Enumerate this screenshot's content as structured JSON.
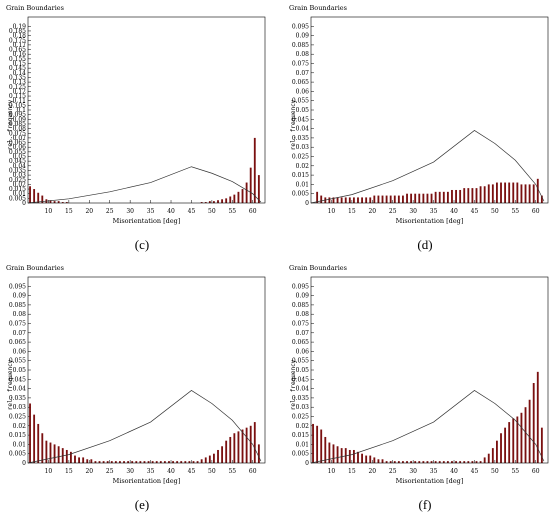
{
  "chart_data": [
    {
      "type": "bar",
      "label": "(c)",
      "title": "Grain Boundaries",
      "xlabel": "Misorientation [deg]",
      "ylabel": "rel. frequency",
      "xlim": [
        5,
        63
      ],
      "ylim": [
        0,
        0.2
      ],
      "xticks": [
        10,
        15,
        20,
        25,
        30,
        35,
        40,
        45,
        50,
        55,
        60
      ],
      "yticks": [
        "0.005",
        "0.01",
        "0.015",
        "0.02",
        "0.025",
        "0.03",
        "0.035",
        "0.04",
        "0.045",
        "0.05",
        "0.055",
        "0.06",
        "0.065",
        "0.07",
        "0.075",
        "0.08",
        "0.085",
        "0.09",
        "0.095",
        "0.1",
        "0.105",
        "0.11",
        "0.115",
        "0.12",
        "0.125",
        "0.13",
        "0.135",
        "0.14",
        "0.145",
        "0.15",
        "0.155",
        "0.16",
        "0.165",
        "0.17",
        "0.175",
        "0.18",
        "0.185",
        "0.19"
      ],
      "bar_color": "#7a1010",
      "x": [
        5,
        6,
        7,
        8,
        9,
        10,
        11,
        12,
        13,
        14,
        47,
        48,
        49,
        50,
        51,
        52,
        53,
        54,
        55,
        56,
        57,
        58,
        59,
        60,
        61
      ],
      "values": [
        0.018,
        0.015,
        0.011,
        0.008,
        0.004,
        0.003,
        0.002,
        0.002,
        0.001,
        0.001,
        0.001,
        0.001,
        0.002,
        0.002,
        0.003,
        0.004,
        0.005,
        0.007,
        0.009,
        0.012,
        0.015,
        0.022,
        0.038,
        0.07,
        0.03
      ],
      "reference_curve": {
        "x": [
          5,
          15,
          25,
          35,
          45,
          50,
          55,
          60,
          62
        ],
        "y": [
          0,
          0.0045,
          0.012,
          0.022,
          0.039,
          0.032,
          0.023,
          0.01,
          0.001
        ]
      }
    },
    {
      "type": "bar",
      "label": "(d)",
      "title": "Grain Boundaries",
      "xlabel": "Misorientation [deg]",
      "ylabel": "rel. frequency",
      "xlim": [
        5,
        63
      ],
      "ylim": [
        0,
        0.1
      ],
      "xticks": [
        10,
        15,
        20,
        25,
        30,
        35,
        40,
        45,
        50,
        55,
        60
      ],
      "yticks": [
        "0.005",
        "0.01",
        "0.015",
        "0.02",
        "0.025",
        "0.03",
        "0.035",
        "0.04",
        "0.045",
        "0.05",
        "0.055",
        "0.06",
        "0.065",
        "0.07",
        "0.075",
        "0.08",
        "0.085",
        "0.09",
        "0.095"
      ],
      "bar_color": "#7a1010",
      "x": [
        6,
        7,
        8,
        9,
        10,
        11,
        12,
        13,
        14,
        15,
        16,
        17,
        18,
        19,
        20,
        21,
        22,
        23,
        24,
        25,
        26,
        27,
        28,
        29,
        30,
        31,
        32,
        33,
        34,
        35,
        36,
        37,
        38,
        39,
        40,
        41,
        42,
        43,
        44,
        45,
        46,
        47,
        48,
        49,
        50,
        51,
        52,
        53,
        54,
        55,
        56,
        57,
        58,
        59,
        60,
        61
      ],
      "values": [
        0.006,
        0.004,
        0.003,
        0.003,
        0.003,
        0.003,
        0.003,
        0.003,
        0.003,
        0.003,
        0.003,
        0.003,
        0.003,
        0.003,
        0.004,
        0.004,
        0.004,
        0.004,
        0.004,
        0.004,
        0.004,
        0.004,
        0.005,
        0.005,
        0.005,
        0.005,
        0.005,
        0.005,
        0.005,
        0.006,
        0.006,
        0.006,
        0.006,
        0.007,
        0.007,
        0.007,
        0.008,
        0.008,
        0.008,
        0.008,
        0.009,
        0.009,
        0.01,
        0.01,
        0.011,
        0.011,
        0.011,
        0.011,
        0.011,
        0.011,
        0.01,
        0.01,
        0.01,
        0.01,
        0.013,
        0.004
      ],
      "reference_curve": {
        "x": [
          5,
          15,
          25,
          35,
          45,
          50,
          55,
          60,
          62
        ],
        "y": [
          0,
          0.0045,
          0.012,
          0.022,
          0.039,
          0.032,
          0.023,
          0.01,
          0.001
        ]
      }
    },
    {
      "type": "bar",
      "label": "(e)",
      "title": "Grain Boundaries",
      "xlabel": "Misorientation [deg]",
      "ylabel": "rel. frequency",
      "xlim": [
        5,
        63
      ],
      "ylim": [
        0,
        0.1
      ],
      "xticks": [
        10,
        15,
        20,
        25,
        30,
        35,
        40,
        45,
        50,
        55,
        60
      ],
      "yticks": [
        "0.005",
        "0.01",
        "0.015",
        "0.02",
        "0.025",
        "0.03",
        "0.035",
        "0.04",
        "0.045",
        "0.05",
        "0.055",
        "0.06",
        "0.065",
        "0.07",
        "0.075",
        "0.08",
        "0.085",
        "0.09",
        "0.095"
      ],
      "bar_color": "#7a1010",
      "x": [
        5,
        6,
        7,
        8,
        9,
        10,
        11,
        12,
        13,
        14,
        15,
        16,
        17,
        18,
        19,
        20,
        21,
        22,
        23,
        24,
        25,
        26,
        27,
        28,
        29,
        30,
        31,
        32,
        33,
        34,
        35,
        36,
        37,
        38,
        39,
        40,
        41,
        42,
        43,
        44,
        45,
        46,
        47,
        48,
        49,
        50,
        51,
        52,
        53,
        54,
        55,
        56,
        57,
        58,
        59,
        60,
        61
      ],
      "values": [
        0.032,
        0.026,
        0.021,
        0.016,
        0.012,
        0.011,
        0.01,
        0.009,
        0.008,
        0.007,
        0.006,
        0.004,
        0.003,
        0.003,
        0.002,
        0.002,
        0.001,
        0.001,
        0.001,
        0.001,
        0.001,
        0.001,
        0.001,
        0.001,
        0.001,
        0.001,
        0.001,
        0.001,
        0.001,
        0.001,
        0.001,
        0.001,
        0.001,
        0.001,
        0.001,
        0.001,
        0.001,
        0.001,
        0.001,
        0.001,
        0.001,
        0.001,
        0.002,
        0.003,
        0.004,
        0.005,
        0.007,
        0.009,
        0.012,
        0.014,
        0.016,
        0.017,
        0.018,
        0.019,
        0.02,
        0.022,
        0.01
      ],
      "reference_curve": {
        "x": [
          5,
          15,
          25,
          35,
          45,
          50,
          55,
          60,
          62
        ],
        "y": [
          0,
          0.0045,
          0.012,
          0.022,
          0.039,
          0.032,
          0.023,
          0.01,
          0.001
        ]
      }
    },
    {
      "type": "bar",
      "label": "(f)",
      "title": "Grain Boundaries",
      "xlabel": "Misorientation [deg]",
      "ylabel": "rel. frequency",
      "xlim": [
        5,
        63
      ],
      "ylim": [
        0,
        0.1
      ],
      "xticks": [
        10,
        15,
        20,
        25,
        30,
        35,
        40,
        45,
        50,
        55,
        60
      ],
      "yticks": [
        "0.005",
        "0.01",
        "0.015",
        "0.02",
        "0.025",
        "0.03",
        "0.035",
        "0.04",
        "0.045",
        "0.05",
        "0.055",
        "0.06",
        "0.065",
        "0.07",
        "0.075",
        "0.08",
        "0.085",
        "0.09",
        "0.095"
      ],
      "bar_color": "#7a1010",
      "x": [
        5,
        6,
        7,
        8,
        9,
        10,
        11,
        12,
        13,
        14,
        15,
        16,
        17,
        18,
        19,
        20,
        21,
        22,
        23,
        24,
        25,
        26,
        27,
        28,
        29,
        30,
        31,
        32,
        33,
        34,
        35,
        36,
        37,
        38,
        39,
        40,
        41,
        42,
        43,
        44,
        45,
        46,
        47,
        48,
        49,
        50,
        51,
        52,
        53,
        54,
        55,
        56,
        57,
        58,
        59,
        60,
        61
      ],
      "values": [
        0.021,
        0.02,
        0.018,
        0.014,
        0.011,
        0.01,
        0.009,
        0.008,
        0.008,
        0.007,
        0.007,
        0.006,
        0.005,
        0.004,
        0.004,
        0.003,
        0.002,
        0.002,
        0.001,
        0.001,
        0.001,
        0.001,
        0.001,
        0.001,
        0.001,
        0.001,
        0.001,
        0.001,
        0.001,
        0.001,
        0.001,
        0.001,
        0.001,
        0.001,
        0.001,
        0.001,
        0.001,
        0.001,
        0.001,
        0.001,
        0.001,
        0.001,
        0.003,
        0.005,
        0.008,
        0.012,
        0.016,
        0.019,
        0.022,
        0.024,
        0.025,
        0.027,
        0.03,
        0.034,
        0.043,
        0.049,
        0.019
      ],
      "reference_curve": {
        "x": [
          5,
          15,
          25,
          35,
          45,
          50,
          55,
          60,
          62
        ],
        "y": [
          0,
          0.0045,
          0.012,
          0.022,
          0.039,
          0.032,
          0.023,
          0.01,
          0.001
        ]
      }
    }
  ]
}
